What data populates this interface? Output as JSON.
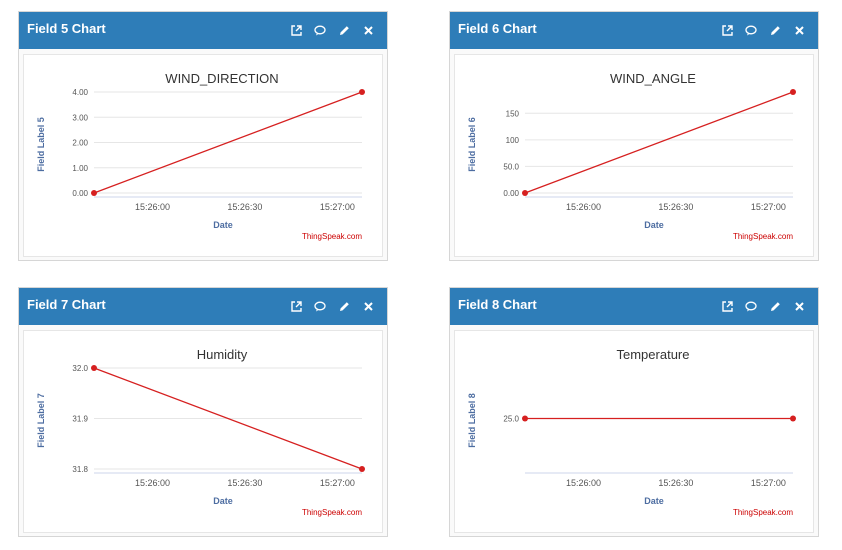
{
  "colors": {
    "header": "#2e7db8",
    "line": "#d62020",
    "axis_title": "#4d6da1",
    "credit": "#cc0000"
  },
  "icons": [
    "external-link-icon",
    "comment-icon",
    "pencil-icon",
    "close-icon"
  ],
  "cards": [
    {
      "header": "Field 5 Chart",
      "chart_title": "WIND_DIRECTION",
      "ylabel": "Field Label 5",
      "xlabel": "Date",
      "credit": "ThingSpeak.com",
      "yticks": [
        "0.00",
        "1.00",
        "2.00",
        "3.00",
        "4.00"
      ],
      "xticks": [
        "15:26:00",
        "15:26:30",
        "15:27:00"
      ]
    },
    {
      "header": "Field 6 Chart",
      "chart_title": "WIND_ANGLE",
      "ylabel": "Field Label 6",
      "xlabel": "Date",
      "credit": "ThingSpeak.com",
      "yticks": [
        "0.00",
        "50.0",
        "100",
        "150"
      ],
      "xticks": [
        "15:26:00",
        "15:26:30",
        "15:27:00"
      ]
    },
    {
      "header": "Field 7 Chart",
      "chart_title": "Humidity",
      "ylabel": "Field Label 7",
      "xlabel": "Date",
      "credit": "ThingSpeak.com",
      "yticks": [
        "31.8",
        "31.9",
        "32.0"
      ],
      "xticks": [
        "15:26:00",
        "15:26:30",
        "15:27:00"
      ]
    },
    {
      "header": "Field 8 Chart",
      "chart_title": "Temperature",
      "ylabel": "Field Label 8",
      "xlabel": "Date",
      "credit": "ThingSpeak.com",
      "yticks": [
        "25.0"
      ],
      "xticks": [
        "15:26:00",
        "15:26:30",
        "15:27:00"
      ]
    }
  ],
  "chart_data": [
    {
      "type": "line",
      "title": "WIND_DIRECTION",
      "xlabel": "Date",
      "ylabel": "Field Label 5",
      "x": [
        "15:25:41",
        "15:27:08"
      ],
      "x_seconds": [
        -19,
        68
      ],
      "xlim_seconds": [
        -19,
        68
      ],
      "y": [
        0,
        4
      ],
      "ylim": [
        0,
        4
      ],
      "ytick_values": [
        0,
        1,
        2,
        3,
        4
      ],
      "xtick_seconds": [
        0,
        30,
        60
      ]
    },
    {
      "type": "line",
      "title": "WIND_ANGLE",
      "xlabel": "Date",
      "ylabel": "Field Label 6",
      "x": [
        "15:25:41",
        "15:27:08"
      ],
      "x_seconds": [
        -19,
        68
      ],
      "xlim_seconds": [
        -19,
        68
      ],
      "y": [
        0,
        190
      ],
      "ylim": [
        0,
        190
      ],
      "ytick_values": [
        0,
        50,
        100,
        150
      ],
      "xtick_seconds": [
        0,
        30,
        60
      ]
    },
    {
      "type": "line",
      "title": "Humidity",
      "xlabel": "Date",
      "ylabel": "Field Label 7",
      "x": [
        "15:25:41",
        "15:27:08"
      ],
      "x_seconds": [
        -19,
        68
      ],
      "xlim_seconds": [
        -19,
        68
      ],
      "y": [
        32.0,
        31.8
      ],
      "ylim": [
        31.8,
        32.0
      ],
      "ytick_values": [
        31.8,
        31.9,
        32.0
      ],
      "xtick_seconds": [
        0,
        30,
        60
      ]
    },
    {
      "type": "line",
      "title": "Temperature",
      "xlabel": "Date",
      "ylabel": "Field Label 8",
      "x": [
        "15:25:41",
        "15:27:08"
      ],
      "x_seconds": [
        -19,
        68
      ],
      "xlim_seconds": [
        -19,
        68
      ],
      "y": [
        25.0,
        25.0
      ],
      "ylim": [
        24.9,
        25.1
      ],
      "ytick_values": [
        25.0
      ],
      "xtick_seconds": [
        0,
        30,
        60
      ]
    }
  ]
}
